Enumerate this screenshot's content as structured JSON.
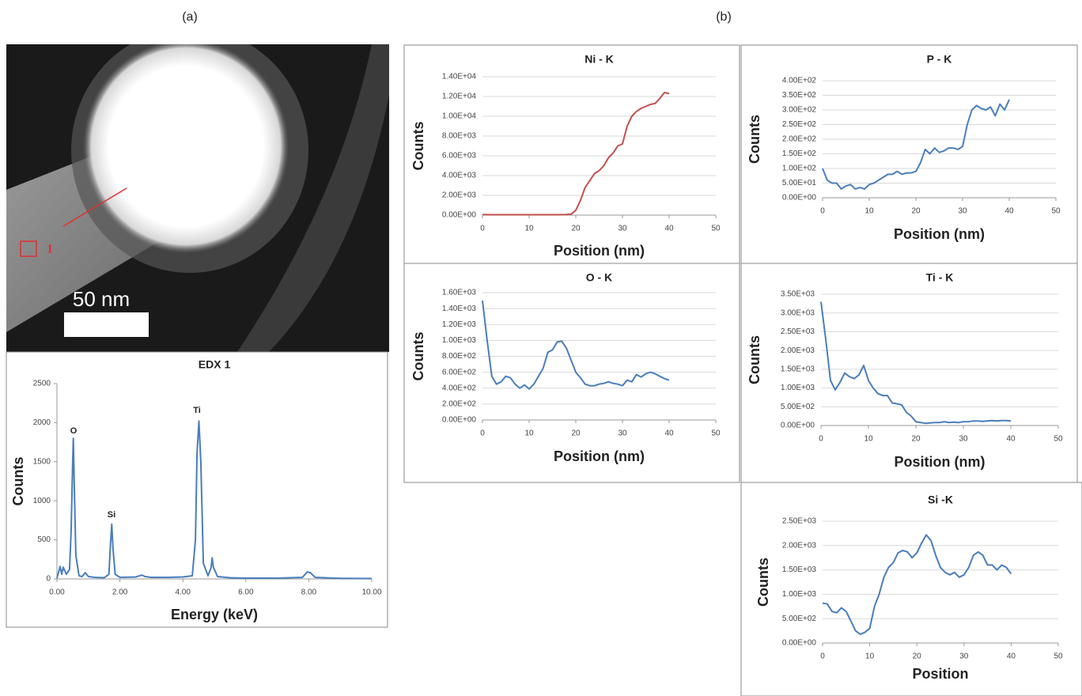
{
  "panels": {
    "a": "(a)",
    "b": "(b)"
  },
  "image": {
    "scale_bar": "50 nm",
    "region_label": "1"
  },
  "chart_data": [
    {
      "type": "line",
      "title": "EDX 1",
      "x_label": "Energy (keV)",
      "y_label": "Counts",
      "color": "#4a7ebb",
      "grid": false,
      "annotations": [
        "O",
        "Si",
        "Ti"
      ],
      "x": [
        0,
        0.1,
        0.15,
        0.2,
        0.3,
        0.4,
        0.45,
        0.5,
        0.52,
        0.55,
        0.6,
        0.7,
        0.8,
        0.9,
        1.0,
        1.2,
        1.5,
        1.65,
        1.7,
        1.74,
        1.78,
        1.85,
        2.0,
        2.5,
        2.7,
        2.8,
        3.0,
        3.5,
        4.0,
        4.3,
        4.4,
        4.45,
        4.51,
        4.57,
        4.65,
        4.8,
        4.9,
        4.93,
        4.97,
        5.1,
        5.5,
        6,
        7,
        7.8,
        7.95,
        8.05,
        8.2,
        8.8,
        9,
        10
      ],
      "values": [
        10,
        160,
        60,
        150,
        60,
        120,
        600,
        1500,
        1800,
        1200,
        300,
        40,
        30,
        80,
        30,
        20,
        15,
        60,
        450,
        700,
        400,
        60,
        20,
        25,
        50,
        30,
        20,
        20,
        25,
        40,
        500,
        1600,
        2020,
        1500,
        200,
        40,
        150,
        270,
        150,
        30,
        15,
        10,
        10,
        20,
        90,
        80,
        20,
        10,
        8,
        5
      ],
      "xlim": [
        0,
        10
      ],
      "ylim": [
        0,
        2500
      ],
      "xticks": [
        {
          "value": 0,
          "label": "0.00"
        },
        {
          "value": 2,
          "label": "2.00"
        },
        {
          "value": 4,
          "label": "4.00"
        },
        {
          "value": 6,
          "label": "6.00"
        },
        {
          "value": 8,
          "label": "8.00"
        },
        {
          "value": 10,
          "label": "10.00"
        }
      ],
      "yticks": [
        0,
        500,
        1000,
        1500,
        2000,
        2500
      ]
    },
    {
      "type": "line",
      "title": "Ni - K",
      "x_label": "Position (nm)",
      "y_label": "Counts",
      "color": "#c0504d",
      "grid": true,
      "x": [
        0,
        1,
        2,
        3,
        4,
        5,
        6,
        7,
        8,
        9,
        10,
        11,
        12,
        13,
        14,
        15,
        16,
        17,
        18,
        19,
        20,
        21,
        22,
        23,
        24,
        25,
        26,
        27,
        28,
        29,
        30,
        31,
        32,
        33,
        34,
        35,
        36,
        37,
        38,
        39,
        40
      ],
      "values": [
        50,
        50,
        40,
        40,
        40,
        40,
        40,
        40,
        40,
        40,
        40,
        40,
        40,
        40,
        40,
        40,
        40,
        50,
        60,
        100,
        500,
        1500,
        2800,
        3500,
        4200,
        4500,
        5000,
        5800,
        6300,
        7000,
        7200,
        9000,
        10000,
        10500,
        10800,
        11000,
        11200,
        11300,
        11800,
        12400,
        12300
      ],
      "xlim": [
        0,
        50
      ],
      "ylim": [
        0,
        14000
      ],
      "xticks": [
        0,
        10,
        20,
        30,
        40,
        50
      ],
      "yticks": [
        {
          "value": 0,
          "label": "0.00E+00"
        },
        {
          "value": 2000,
          "label": "2.00E+03"
        },
        {
          "value": 4000,
          "label": "4.00E+03"
        },
        {
          "value": 6000,
          "label": "6.00E+03"
        },
        {
          "value": 8000,
          "label": "8.00E+03"
        },
        {
          "value": 10000,
          "label": "1.00E+04"
        },
        {
          "value": 12000,
          "label": "1.20E+04"
        },
        {
          "value": 14000,
          "label": "1.40E+04"
        }
      ]
    },
    {
      "type": "line",
      "title": "P - K",
      "x_label": "Position (nm)",
      "y_label": "Counts",
      "color": "#4a7ebb",
      "grid": true,
      "x": [
        0,
        1,
        2,
        3,
        4,
        5,
        6,
        7,
        8,
        9,
        10,
        11,
        12,
        13,
        14,
        15,
        16,
        17,
        18,
        19,
        20,
        21,
        22,
        23,
        24,
        25,
        26,
        27,
        28,
        29,
        30,
        31,
        32,
        33,
        34,
        35,
        36,
        37,
        38,
        39,
        40
      ],
      "values": [
        100,
        60,
        50,
        50,
        30,
        40,
        45,
        30,
        35,
        30,
        45,
        50,
        60,
        70,
        80,
        80,
        90,
        80,
        85,
        85,
        90,
        120,
        165,
        150,
        170,
        155,
        160,
        170,
        170,
        165,
        175,
        250,
        300,
        315,
        305,
        300,
        310,
        280,
        320,
        300,
        335
      ],
      "xlim": [
        0,
        50
      ],
      "ylim": [
        0,
        400
      ],
      "xticks": [
        0,
        10,
        20,
        30,
        40,
        50
      ],
      "yticks": [
        {
          "value": 0,
          "label": "0.00E+00"
        },
        {
          "value": 50,
          "label": "5.00E+01"
        },
        {
          "value": 100,
          "label": "1.00E+02"
        },
        {
          "value": 150,
          "label": "1.50E+02"
        },
        {
          "value": 200,
          "label": "2.00E+02"
        },
        {
          "value": 250,
          "label": "2.50E+02"
        },
        {
          "value": 300,
          "label": "3.00E+02"
        },
        {
          "value": 350,
          "label": "3.50E+02"
        },
        {
          "value": 400,
          "label": "4.00E+02"
        }
      ]
    },
    {
      "type": "line",
      "title": "O - K",
      "x_label": "Position (nm)",
      "y_label": "Counts",
      "color": "#4a7ebb",
      "grid": true,
      "x": [
        0,
        1,
        2,
        3,
        4,
        5,
        6,
        7,
        8,
        9,
        10,
        11,
        12,
        13,
        14,
        15,
        16,
        17,
        18,
        19,
        20,
        21,
        22,
        23,
        24,
        25,
        26,
        27,
        28,
        29,
        30,
        31,
        32,
        33,
        34,
        35,
        36,
        37,
        38,
        39,
        40
      ],
      "values": [
        1500,
        1000,
        550,
        450,
        480,
        550,
        530,
        450,
        400,
        440,
        390,
        450,
        550,
        650,
        850,
        880,
        980,
        990,
        900,
        750,
        600,
        530,
        450,
        430,
        430,
        450,
        460,
        480,
        460,
        450,
        430,
        500,
        480,
        570,
        540,
        580,
        600,
        580,
        550,
        520,
        500
      ],
      "xlim": [
        0,
        50
      ],
      "ylim": [
        0,
        1600
      ],
      "xticks": [
        0,
        10,
        20,
        30,
        40,
        50
      ],
      "yticks": [
        {
          "value": 0,
          "label": "0.00E+00"
        },
        {
          "value": 200,
          "label": "2.00E+02"
        },
        {
          "value": 400,
          "label": "4.00E+02"
        },
        {
          "value": 600,
          "label": "6.00E+02"
        },
        {
          "value": 800,
          "label": "8.00E+02"
        },
        {
          "value": 1000,
          "label": "1.00E+03"
        },
        {
          "value": 1200,
          "label": "1.20E+03"
        },
        {
          "value": 1400,
          "label": "1.40E+03"
        },
        {
          "value": 1600,
          "label": "1.60E+03"
        }
      ]
    },
    {
      "type": "line",
      "title": "Ti - K",
      "x_label": "Position (nm)",
      "y_label": "Counts",
      "color": "#4a7ebb",
      "grid": true,
      "x": [
        0,
        1,
        2,
        3,
        4,
        5,
        6,
        7,
        8,
        9,
        10,
        11,
        12,
        13,
        14,
        15,
        16,
        17,
        18,
        19,
        20,
        21,
        22,
        23,
        24,
        25,
        26,
        27,
        28,
        29,
        30,
        31,
        32,
        33,
        34,
        35,
        36,
        37,
        38,
        39,
        40
      ],
      "values": [
        3300,
        2300,
        1200,
        950,
        1150,
        1400,
        1300,
        1250,
        1350,
        1600,
        1200,
        1000,
        850,
        800,
        800,
        600,
        580,
        550,
        350,
        250,
        100,
        80,
        60,
        70,
        80,
        80,
        100,
        80,
        90,
        80,
        100,
        100,
        120,
        120,
        110,
        120,
        130,
        120,
        130,
        130,
        120
      ],
      "xlim": [
        0,
        50
      ],
      "ylim": [
        0,
        3500
      ],
      "xticks": [
        0,
        10,
        20,
        30,
        40,
        50
      ],
      "yticks": [
        {
          "value": 0,
          "label": "0.00E+00"
        },
        {
          "value": 500,
          "label": "5.00E+02"
        },
        {
          "value": 1000,
          "label": "1.00E+03"
        },
        {
          "value": 1500,
          "label": "1.50E+03"
        },
        {
          "value": 2000,
          "label": "2.00E+03"
        },
        {
          "value": 2500,
          "label": "2.50E+03"
        },
        {
          "value": 3000,
          "label": "3.00E+03"
        },
        {
          "value": 3500,
          "label": "3.50E+03"
        }
      ]
    },
    {
      "type": "line",
      "title": "Si -K",
      "x_label": "Position",
      "y_label": "Counts",
      "color": "#4a7ebb",
      "grid": true,
      "x": [
        0,
        1,
        2,
        3,
        4,
        5,
        6,
        7,
        8,
        9,
        10,
        11,
        12,
        13,
        14,
        15,
        16,
        17,
        18,
        19,
        20,
        21,
        22,
        23,
        24,
        25,
        26,
        27,
        28,
        29,
        30,
        31,
        32,
        33,
        34,
        35,
        36,
        37,
        38,
        39,
        40
      ],
      "values": [
        820,
        800,
        650,
        620,
        720,
        650,
        450,
        250,
        180,
        220,
        300,
        750,
        1000,
        1350,
        1550,
        1650,
        1850,
        1900,
        1870,
        1750,
        1850,
        2050,
        2220,
        2100,
        1800,
        1550,
        1450,
        1400,
        1450,
        1350,
        1400,
        1550,
        1800,
        1870,
        1800,
        1600,
        1600,
        1500,
        1600,
        1550,
        1420
      ],
      "xlim": [
        0,
        50
      ],
      "ylim": [
        0,
        2500
      ],
      "xticks": [
        0,
        10,
        20,
        30,
        40,
        50
      ],
      "yticks": [
        {
          "value": 0,
          "label": "0.00E+00"
        },
        {
          "value": 500,
          "label": "5.00E+02"
        },
        {
          "value": 1000,
          "label": "1.00E+03"
        },
        {
          "value": 1500,
          "label": "1.50E+03"
        },
        {
          "value": 2000,
          "label": "2.00E+03"
        },
        {
          "value": 2500,
          "label": "2.50E+03"
        }
      ]
    }
  ]
}
